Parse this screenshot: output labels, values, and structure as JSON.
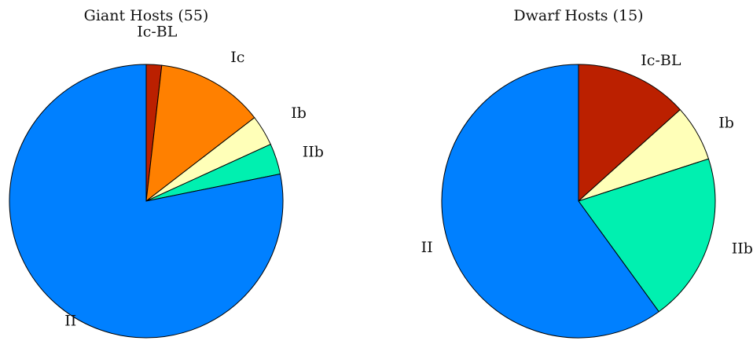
{
  "chart_data": [
    {
      "type": "pie",
      "title": "Giant Hosts (55)",
      "categories": [
        "Ic-BL",
        "Ic",
        "Ib",
        "IIb",
        "II"
      ],
      "values": [
        1,
        7,
        2,
        2,
        43
      ],
      "colors": [
        "#bb2000",
        "#ff8000",
        "#ffffb8",
        "#00f0b0",
        "#0080ff"
      ],
      "start": "12 o'clock",
      "direction": "clockwise",
      "legend": "labels beside slices"
    },
    {
      "type": "pie",
      "title": "Dwarf Hosts (15)",
      "categories": [
        "Ic-BL",
        "Ib",
        "IIb",
        "II"
      ],
      "values": [
        2,
        1,
        3,
        9
      ],
      "colors": [
        "#bb2000",
        "#ffffb8",
        "#00f0b0",
        "#0080ff"
      ],
      "start": "12 o'clock",
      "direction": "clockwise",
      "legend": "labels beside slices"
    }
  ]
}
